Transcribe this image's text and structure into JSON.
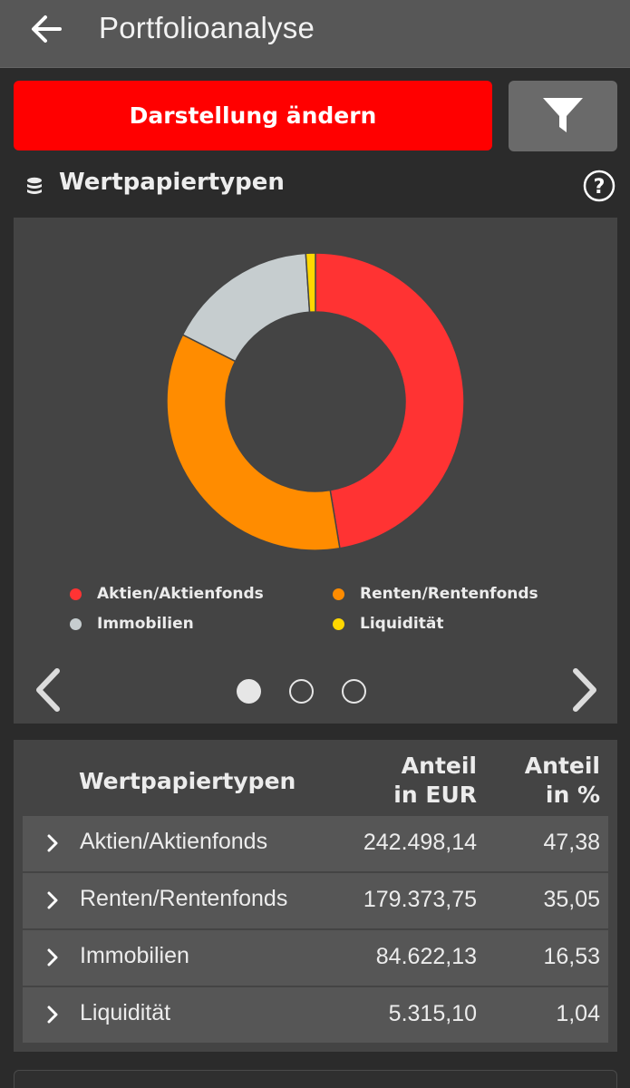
{
  "header": {
    "title": "Portfolioanalyse",
    "back_icon": "arrow-left-icon"
  },
  "toolbar": {
    "change_view_label": "Darstellung ändern",
    "filter_icon": "filter-icon"
  },
  "section": {
    "title": "Wertpapiertypen",
    "icon": "coins-stack-icon",
    "help_label": "?"
  },
  "chart_data": {
    "type": "pie",
    "donut": true,
    "categories": [
      "Aktien/Aktienfonds",
      "Renten/Rentenfonds",
      "Immobilien",
      "Liquidität"
    ],
    "values": [
      47.38,
      35.05,
      16.53,
      1.04
    ],
    "colors": [
      "#ff3333",
      "#ff8c00",
      "#c6cdcf",
      "#ffd700"
    ],
    "legend_position": "bottom"
  },
  "carousel": {
    "pages": 3,
    "active_index": 0
  },
  "table": {
    "headers": {
      "name": "Wertpapiertypen",
      "eur_line1": "Anteil",
      "eur_line2": "in EUR",
      "pct_line1": "Anteil",
      "pct_line2": "in %"
    },
    "rows": [
      {
        "name": "Aktien/Aktienfonds",
        "eur": "242.498,14",
        "pct": "47,38"
      },
      {
        "name": "Renten/Rentenfonds",
        "eur": "179.373,75",
        "pct": "35,05"
      },
      {
        "name": "Immobilien",
        "eur": "84.622,13",
        "pct": "16,53"
      },
      {
        "name": "Liquidität",
        "eur": "5.315,10",
        "pct": "1,04"
      }
    ]
  }
}
